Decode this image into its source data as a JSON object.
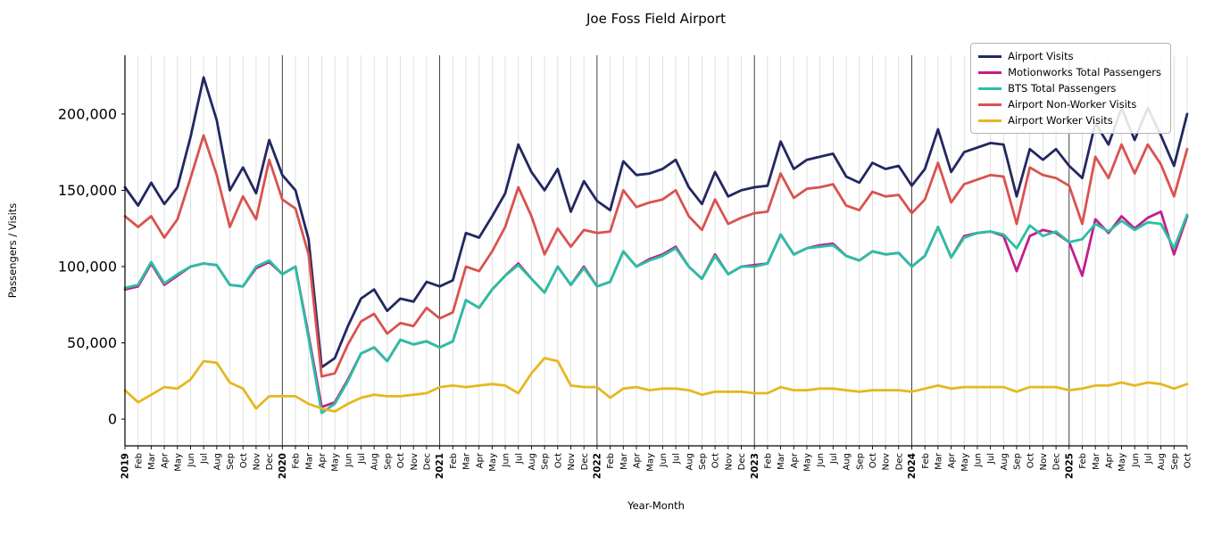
{
  "chart_data": {
    "type": "line",
    "title": "Joe Foss Field Airport",
    "xlabel": "Year-Month",
    "ylabel": "Passengers / Visits",
    "ylim": [
      -17500,
      238500
    ],
    "yticks": [
      0,
      50000,
      100000,
      150000,
      200000
    ],
    "ytick_labels": [
      "0",
      "50,000",
      "100,000",
      "150,000",
      "200,000"
    ],
    "grid": "vertical gridlines at every month, dark vertical lines at year boundaries",
    "legend_position": "upper right",
    "categories": [
      "2019",
      "Feb",
      "Mar",
      "Apr",
      "May",
      "Jun",
      "Jul",
      "Aug",
      "Sep",
      "Oct",
      "Nov",
      "Dec",
      "2020",
      "Feb",
      "Mar",
      "Apr",
      "May",
      "Jun",
      "Jul",
      "Aug",
      "Sep",
      "Oct",
      "Nov",
      "Dec",
      "2021",
      "Feb",
      "Mar",
      "Apr",
      "May",
      "Jun",
      "Jul",
      "Aug",
      "Sep",
      "Oct",
      "Nov",
      "Dec",
      "2022",
      "Feb",
      "Mar",
      "Apr",
      "May",
      "Jun",
      "Jul",
      "Aug",
      "Sep",
      "Oct",
      "Nov",
      "Dec",
      "2023",
      "Feb",
      "Mar",
      "Apr",
      "May",
      "Jun",
      "Jul",
      "Aug",
      "Sep",
      "Oct",
      "Nov",
      "Dec",
      "2024",
      "Feb",
      "Mar",
      "Apr",
      "May",
      "Jun",
      "Jul",
      "Aug",
      "Sep",
      "Oct",
      "Nov",
      "Dec",
      "2025",
      "Feb",
      "Mar",
      "Apr",
      "May",
      "Jun",
      "Jul",
      "Aug",
      "Sep",
      "Oct"
    ],
    "series": [
      {
        "name": "Airport Visits",
        "color": "#232761",
        "values": [
          152000,
          140000,
          155000,
          141000,
          152000,
          185000,
          224000,
          196000,
          150000,
          165000,
          148000,
          183000,
          160000,
          150000,
          118000,
          34000,
          40000,
          61000,
          79000,
          85000,
          71000,
          79000,
          77000,
          90000,
          87000,
          91000,
          122000,
          119000,
          133000,
          148000,
          180000,
          162000,
          150000,
          164000,
          136000,
          156000,
          143000,
          137000,
          169000,
          160000,
          161000,
          164000,
          170000,
          152000,
          141000,
          162000,
          146000,
          150000,
          152000,
          153000,
          182000,
          164000,
          170000,
          172000,
          174000,
          159000,
          155000,
          168000,
          164000,
          166000,
          153000,
          164000,
          190000,
          162000,
          175000,
          178000,
          181000,
          180000,
          146000,
          177000,
          170000,
          177000,
          166000,
          158000,
          194000,
          180000,
          204000,
          183000,
          204000,
          186000,
          166000,
          200000
        ]
      },
      {
        "name": "Motionworks Total Passengers",
        "color": "#c21e8c",
        "values": [
          85000,
          87000,
          102000,
          88000,
          94000,
          100000,
          102000,
          101000,
          88000,
          87000,
          99000,
          103000,
          95000,
          100000,
          55000,
          8000,
          11000,
          26000,
          43000,
          47000,
          38000,
          52000,
          49000,
          51000,
          47000,
          51000,
          78000,
          73000,
          85000,
          94000,
          102000,
          92000,
          83000,
          100000,
          88000,
          100000,
          87000,
          90000,
          110000,
          100000,
          105000,
          108000,
          113000,
          100000,
          92000,
          108000,
          95000,
          100000,
          101000,
          102000,
          121000,
          108000,
          112000,
          114000,
          115000,
          107000,
          104000,
          110000,
          108000,
          109000,
          100000,
          107000,
          126000,
          106000,
          120000,
          122000,
          123000,
          120000,
          97000,
          120000,
          124000,
          122000,
          116000,
          94000,
          131000,
          122000,
          133000,
          125000,
          132000,
          136000,
          108000,
          133000
        ]
      },
      {
        "name": "BTS Total Passengers",
        "color": "#2abfa4",
        "values": [
          86000,
          88000,
          103000,
          89000,
          95000,
          100000,
          102000,
          101000,
          88000,
          87000,
          100000,
          104000,
          95000,
          100000,
          53000,
          4000,
          10000,
          25000,
          43000,
          47000,
          38000,
          52000,
          49000,
          51000,
          47000,
          51000,
          78000,
          73000,
          85000,
          94000,
          101000,
          92000,
          83000,
          100000,
          88000,
          99000,
          87000,
          90000,
          110000,
          100000,
          104000,
          107000,
          112000,
          100000,
          92000,
          107000,
          95000,
          100000,
          100000,
          102000,
          121000,
          108000,
          112000,
          113000,
          114000,
          107000,
          104000,
          110000,
          108000,
          109000,
          100000,
          107000,
          126000,
          106000,
          119000,
          122000,
          123000,
          121000,
          112000,
          127000,
          120000,
          123000,
          116000,
          118000,
          128000,
          123000,
          130000,
          124000,
          129000,
          128000,
          112000,
          134000
        ]
      },
      {
        "name": "Airport Non-Worker Visits",
        "color": "#d9534f",
        "values": [
          133000,
          126000,
          133000,
          119000,
          131000,
          158000,
          186000,
          160000,
          126000,
          146000,
          131000,
          170000,
          144000,
          138000,
          108000,
          28000,
          30000,
          49000,
          64000,
          69000,
          56000,
          63000,
          61000,
          73000,
          66000,
          70000,
          100000,
          97000,
          110000,
          126000,
          152000,
          133000,
          108000,
          125000,
          113000,
          124000,
          122000,
          123000,
          150000,
          139000,
          142000,
          144000,
          150000,
          133000,
          124000,
          144000,
          128000,
          132000,
          135000,
          136000,
          161000,
          145000,
          151000,
          152000,
          154000,
          140000,
          137000,
          149000,
          146000,
          147000,
          135000,
          144000,
          168000,
          142000,
          154000,
          157000,
          160000,
          159000,
          128000,
          165000,
          160000,
          158000,
          153000,
          128000,
          172000,
          158000,
          180000,
          161000,
          180000,
          167000,
          146000,
          177000
        ]
      },
      {
        "name": "Airport Worker Visits",
        "color": "#e6b81f",
        "values": [
          19000,
          11000,
          16000,
          21000,
          20000,
          26000,
          38000,
          37000,
          24000,
          20000,
          7000,
          15000,
          15000,
          15000,
          10000,
          7000,
          5000,
          10000,
          14000,
          16000,
          15000,
          15000,
          16000,
          17000,
          21000,
          22000,
          21000,
          22000,
          23000,
          22000,
          17000,
          30000,
          40000,
          38000,
          22000,
          21000,
          21000,
          14000,
          20000,
          21000,
          19000,
          20000,
          20000,
          19000,
          16000,
          18000,
          18000,
          18000,
          17000,
          17000,
          21000,
          19000,
          19000,
          20000,
          20000,
          19000,
          18000,
          19000,
          19000,
          19000,
          18000,
          20000,
          22000,
          20000,
          21000,
          21000,
          21000,
          21000,
          18000,
          21000,
          21000,
          21000,
          19000,
          20000,
          22000,
          22000,
          24000,
          22000,
          24000,
          23000,
          20000,
          23000
        ]
      }
    ]
  }
}
